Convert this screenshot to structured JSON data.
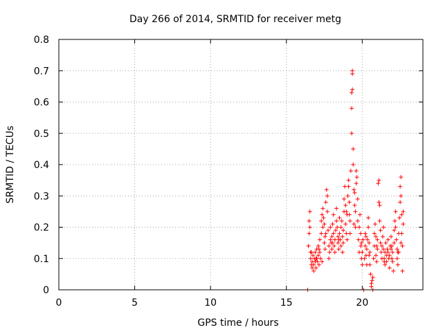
{
  "chart_data": {
    "type": "scatter",
    "title": "Day 266 of 2014, SRMTID for receiver metg",
    "xlabel": "GPS time / hours",
    "ylabel": "SRMTID / TECUs",
    "xlim": [
      0,
      24
    ],
    "ylim": [
      0,
      0.8
    ],
    "xticks": [
      0,
      5,
      10,
      15,
      20
    ],
    "xtick_labels": [
      "0",
      "5",
      "10",
      "15",
      "20"
    ],
    "yticks": [
      0,
      0.1,
      0.2,
      0.3,
      0.4,
      0.5,
      0.6,
      0.7,
      0.8
    ],
    "ytick_labels": [
      "0",
      "0.1",
      "0.2",
      "0.3",
      "0.4",
      "0.5",
      "0.6",
      "0.7",
      "0.8"
    ],
    "grid": true,
    "marker": "+",
    "color": "#ff0000",
    "series": [
      {
        "name": "SRMTID",
        "points": [
          [
            16.4,
            0.0
          ],
          [
            16.45,
            0.14
          ],
          [
            16.5,
            0.18
          ],
          [
            16.5,
            0.22
          ],
          [
            16.55,
            0.25
          ],
          [
            16.55,
            0.2
          ],
          [
            16.6,
            0.12
          ],
          [
            16.6,
            0.1
          ],
          [
            16.65,
            0.08
          ],
          [
            16.7,
            0.07
          ],
          [
            16.7,
            0.09
          ],
          [
            16.75,
            0.11
          ],
          [
            16.8,
            0.06
          ],
          [
            16.8,
            0.08
          ],
          [
            16.85,
            0.1
          ],
          [
            16.9,
            0.09
          ],
          [
            16.9,
            0.12
          ],
          [
            16.95,
            0.07
          ],
          [
            17.0,
            0.1
          ],
          [
            17.0,
            0.13
          ],
          [
            17.05,
            0.09
          ],
          [
            17.1,
            0.11
          ],
          [
            17.1,
            0.14
          ],
          [
            17.15,
            0.08
          ],
          [
            17.2,
            0.12
          ],
          [
            17.2,
            0.16
          ],
          [
            17.25,
            0.1
          ],
          [
            17.3,
            0.18
          ],
          [
            17.3,
            0.22
          ],
          [
            17.35,
            0.24
          ],
          [
            17.4,
            0.2
          ],
          [
            17.4,
            0.26
          ],
          [
            17.45,
            0.23
          ],
          [
            17.5,
            0.21
          ],
          [
            17.5,
            0.15
          ],
          [
            17.55,
            0.13
          ],
          [
            17.6,
            0.18
          ],
          [
            17.6,
            0.28
          ],
          [
            17.65,
            0.32
          ],
          [
            17.7,
            0.3
          ],
          [
            17.7,
            0.25
          ],
          [
            17.75,
            0.19
          ],
          [
            17.8,
            0.14
          ],
          [
            17.8,
            0.1
          ],
          [
            17.85,
            0.12
          ],
          [
            17.9,
            0.16
          ],
          [
            17.9,
            0.2
          ],
          [
            17.95,
            0.15
          ],
          [
            18.0,
            0.13
          ],
          [
            18.0,
            0.17
          ],
          [
            18.05,
            0.21
          ],
          [
            18.1,
            0.24
          ],
          [
            18.1,
            0.18
          ],
          [
            18.15,
            0.14
          ],
          [
            18.2,
            0.16
          ],
          [
            18.2,
            0.12
          ],
          [
            18.25,
            0.19
          ],
          [
            18.3,
            0.22
          ],
          [
            18.3,
            0.26
          ],
          [
            18.35,
            0.2
          ],
          [
            18.4,
            0.15
          ],
          [
            18.4,
            0.17
          ],
          [
            18.45,
            0.13
          ],
          [
            18.5,
            0.18
          ],
          [
            18.5,
            0.23
          ],
          [
            18.55,
            0.16
          ],
          [
            18.6,
            0.14
          ],
          [
            18.6,
            0.2
          ],
          [
            18.65,
            0.22
          ],
          [
            18.7,
            0.17
          ],
          [
            18.7,
            0.12
          ],
          [
            18.75,
            0.15
          ],
          [
            18.8,
            0.25
          ],
          [
            18.8,
            0.29
          ],
          [
            18.85,
            0.33
          ],
          [
            18.9,
            0.27
          ],
          [
            18.9,
            0.21
          ],
          [
            18.95,
            0.18
          ],
          [
            19.0,
            0.16
          ],
          [
            19.0,
            0.24
          ],
          [
            19.05,
            0.3
          ],
          [
            19.1,
            0.35
          ],
          [
            19.1,
            0.33
          ],
          [
            19.15,
            0.28
          ],
          [
            19.2,
            0.22
          ],
          [
            19.2,
            0.18
          ],
          [
            19.25,
            0.38
          ],
          [
            19.3,
            0.5
          ],
          [
            19.3,
            0.58
          ],
          [
            19.3,
            0.63
          ],
          [
            19.35,
            0.69
          ],
          [
            19.35,
            0.7
          ],
          [
            19.35,
            0.64
          ],
          [
            19.4,
            0.45
          ],
          [
            19.4,
            0.4
          ],
          [
            19.45,
            0.32
          ],
          [
            19.5,
            0.27
          ],
          [
            19.5,
            0.31
          ],
          [
            19.55,
            0.25
          ],
          [
            19.6,
            0.34
          ],
          [
            19.6,
            0.38
          ],
          [
            19.65,
            0.36
          ],
          [
            19.7,
            0.29
          ],
          [
            19.7,
            0.22
          ],
          [
            19.75,
            0.16
          ],
          [
            19.8,
            0.12
          ],
          [
            19.8,
            0.2
          ],
          [
            19.85,
            0.24
          ],
          [
            19.9,
            0.18
          ],
          [
            19.9,
            0.14
          ],
          [
            19.95,
            0.1
          ],
          [
            20.0,
            0.08
          ],
          [
            20.0,
            0.12
          ],
          [
            20.05,
            0.16
          ],
          [
            20.1,
            0.0
          ],
          [
            20.15,
            0.1
          ],
          [
            20.2,
            0.14
          ],
          [
            20.2,
            0.18
          ],
          [
            20.25,
            0.11
          ],
          [
            20.3,
            0.08
          ],
          [
            20.3,
            0.13
          ],
          [
            20.35,
            0.16
          ],
          [
            20.4,
            0.2
          ],
          [
            20.4,
            0.23
          ],
          [
            20.45,
            0.15
          ],
          [
            20.5,
            0.12
          ],
          [
            20.5,
            0.08
          ],
          [
            20.55,
            0.05
          ],
          [
            20.6,
            0.02
          ],
          [
            20.6,
            0.01
          ],
          [
            20.65,
            0.03
          ],
          [
            20.7,
            0.0
          ],
          [
            20.7,
            0.04
          ],
          [
            20.75,
            0.1
          ],
          [
            20.8,
            0.14
          ],
          [
            20.8,
            0.18
          ],
          [
            20.85,
            0.21
          ],
          [
            20.9,
            0.17
          ],
          [
            20.9,
            0.11
          ],
          [
            20.95,
            0.09
          ],
          [
            21.0,
            0.13
          ],
          [
            21.0,
            0.16
          ],
          [
            21.05,
            0.34
          ],
          [
            21.1,
            0.35
          ],
          [
            21.1,
            0.28
          ],
          [
            21.15,
            0.22
          ],
          [
            21.2,
            0.19
          ],
          [
            21.2,
            0.15
          ],
          [
            21.25,
            0.12
          ],
          [
            21.3,
            0.1
          ],
          [
            21.3,
            0.14
          ],
          [
            21.35,
            0.17
          ],
          [
            21.4,
            0.2
          ],
          [
            21.4,
            0.13
          ],
          [
            21.45,
            0.1
          ],
          [
            21.5,
            0.08
          ],
          [
            21.5,
            0.12
          ],
          [
            21.55,
            0.15
          ],
          [
            21.6,
            0.11
          ],
          [
            21.6,
            0.09
          ],
          [
            21.65,
            0.13
          ],
          [
            21.7,
            0.16
          ],
          [
            21.7,
            0.12
          ],
          [
            21.75,
            0.1
          ],
          [
            21.8,
            0.07
          ],
          [
            21.8,
            0.11
          ],
          [
            21.85,
            0.14
          ],
          [
            21.9,
            0.17
          ],
          [
            21.9,
            0.13
          ],
          [
            21.95,
            0.1
          ],
          [
            22.0,
            0.09
          ],
          [
            22.0,
            0.12
          ],
          [
            22.05,
            0.06
          ],
          [
            22.1,
            0.15
          ],
          [
            22.1,
            0.19
          ],
          [
            22.15,
            0.22
          ],
          [
            22.2,
            0.25
          ],
          [
            22.2,
            0.2
          ],
          [
            22.25,
            0.16
          ],
          [
            22.3,
            0.13
          ],
          [
            22.3,
            0.1
          ],
          [
            22.35,
            0.08
          ],
          [
            22.4,
            0.12
          ],
          [
            22.4,
            0.18
          ],
          [
            22.45,
            0.23
          ],
          [
            22.5,
            0.28
          ],
          [
            22.5,
            0.33
          ],
          [
            22.55,
            0.36
          ],
          [
            22.55,
            0.3
          ],
          [
            22.6,
            0.24
          ],
          [
            22.6,
            0.18
          ],
          [
            22.65,
            0.14
          ],
          [
            22.7,
            0.21
          ],
          [
            22.7,
            0.25
          ],
          [
            22.65,
            0.06
          ],
          [
            22.55,
            0.15
          ],
          [
            17.35,
            0.09
          ],
          [
            17.15,
            0.13
          ],
          [
            18.75,
            0.19
          ],
          [
            19.15,
            0.24
          ],
          [
            19.45,
            0.21
          ],
          [
            19.95,
            0.15
          ],
          [
            20.45,
            0.11
          ],
          [
            20.95,
            0.14
          ],
          [
            21.45,
            0.09
          ],
          [
            21.95,
            0.14
          ],
          [
            22.35,
            0.12
          ],
          [
            18.05,
            0.15
          ],
          [
            16.65,
            0.12
          ],
          [
            16.95,
            0.1
          ],
          [
            17.55,
            0.17
          ],
          [
            18.45,
            0.16
          ],
          [
            18.95,
            0.25
          ],
          [
            19.55,
            0.2
          ],
          [
            20.25,
            0.17
          ],
          [
            21.15,
            0.27
          ]
        ]
      }
    ]
  }
}
